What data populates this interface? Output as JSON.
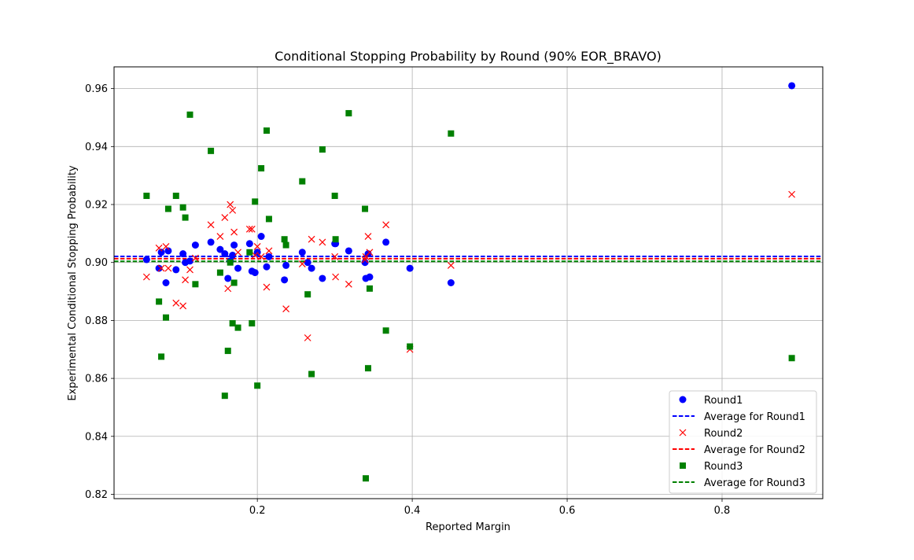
{
  "chart_data": {
    "type": "scatter",
    "title": "Conditional Stopping Probability by Round (90% EOR_BRAVO)",
    "xlabel": "Reported Margin",
    "ylabel": "Experimental Conditional Stopping Probability",
    "xlim": [
      0.015,
      0.93
    ],
    "ylim": [
      0.8185,
      0.9675
    ],
    "xticks": [
      0.2,
      0.4,
      0.6,
      0.8
    ],
    "yticks": [
      0.82,
      0.84,
      0.86,
      0.88,
      0.9,
      0.92,
      0.94,
      0.96
    ],
    "xtick_labels": [
      "0.2",
      "0.4",
      "0.6",
      "0.8"
    ],
    "ytick_labels": [
      "0.82",
      "0.84",
      "0.86",
      "0.88",
      "0.90",
      "0.92",
      "0.94",
      "0.96"
    ],
    "grid": true,
    "legend_position": "bottom-right",
    "series": [
      {
        "name": "Round1",
        "marker": "circle",
        "color": "#0000ff",
        "average_label": "Average for Round1",
        "average": 0.9021,
        "points": [
          [
            0.057,
            0.901
          ],
          [
            0.073,
            0.898
          ],
          [
            0.076,
            0.9035
          ],
          [
            0.082,
            0.893
          ],
          [
            0.085,
            0.904
          ],
          [
            0.095,
            0.8975
          ],
          [
            0.104,
            0.903
          ],
          [
            0.107,
            0.9
          ],
          [
            0.113,
            0.9005
          ],
          [
            0.12,
            0.906
          ],
          [
            0.14,
            0.907
          ],
          [
            0.152,
            0.9045
          ],
          [
            0.158,
            0.903
          ],
          [
            0.162,
            0.8945
          ],
          [
            0.165,
            0.9005
          ],
          [
            0.168,
            0.9025
          ],
          [
            0.17,
            0.906
          ],
          [
            0.175,
            0.898
          ],
          [
            0.19,
            0.9065
          ],
          [
            0.193,
            0.897
          ],
          [
            0.197,
            0.8965
          ],
          [
            0.2,
            0.9035
          ],
          [
            0.205,
            0.909
          ],
          [
            0.212,
            0.8985
          ],
          [
            0.215,
            0.902
          ],
          [
            0.235,
            0.894
          ],
          [
            0.237,
            0.899
          ],
          [
            0.258,
            0.9035
          ],
          [
            0.265,
            0.9
          ],
          [
            0.27,
            0.898
          ],
          [
            0.284,
            0.8945
          ],
          [
            0.3,
            0.9065
          ],
          [
            0.301,
            0.9065
          ],
          [
            0.318,
            0.904
          ],
          [
            0.339,
            0.9
          ],
          [
            0.34,
            0.8945
          ],
          [
            0.343,
            0.903
          ],
          [
            0.345,
            0.895
          ],
          [
            0.366,
            0.907
          ],
          [
            0.397,
            0.898
          ],
          [
            0.45,
            0.893
          ],
          [
            0.89,
            0.961
          ]
        ]
      },
      {
        "name": "Round2",
        "marker": "x",
        "color": "#ff0000",
        "average_label": "Average for Round2",
        "average": 0.9013,
        "points": [
          [
            0.057,
            0.895
          ],
          [
            0.073,
            0.905
          ],
          [
            0.076,
            0.898
          ],
          [
            0.082,
            0.9055
          ],
          [
            0.085,
            0.898
          ],
          [
            0.095,
            0.886
          ],
          [
            0.104,
            0.885
          ],
          [
            0.107,
            0.894
          ],
          [
            0.113,
            0.8975
          ],
          [
            0.12,
            0.9015
          ],
          [
            0.14,
            0.913
          ],
          [
            0.152,
            0.909
          ],
          [
            0.158,
            0.9155
          ],
          [
            0.162,
            0.891
          ],
          [
            0.165,
            0.92
          ],
          [
            0.168,
            0.918
          ],
          [
            0.17,
            0.9105
          ],
          [
            0.175,
            0.9035
          ],
          [
            0.19,
            0.9115
          ],
          [
            0.193,
            0.9115
          ],
          [
            0.197,
            0.9025
          ],
          [
            0.2,
            0.9055
          ],
          [
            0.205,
            0.902
          ],
          [
            0.212,
            0.8915
          ],
          [
            0.215,
            0.904
          ],
          [
            0.237,
            0.884
          ],
          [
            0.258,
            0.8995
          ],
          [
            0.265,
            0.874
          ],
          [
            0.27,
            0.908
          ],
          [
            0.284,
            0.907
          ],
          [
            0.3,
            0.902
          ],
          [
            0.301,
            0.895
          ],
          [
            0.318,
            0.8925
          ],
          [
            0.339,
            0.901
          ],
          [
            0.34,
            0.902
          ],
          [
            0.343,
            0.909
          ],
          [
            0.345,
            0.9035
          ],
          [
            0.366,
            0.913
          ],
          [
            0.397,
            0.87
          ],
          [
            0.45,
            0.899
          ],
          [
            0.89,
            0.9235
          ]
        ]
      },
      {
        "name": "Round3",
        "marker": "square",
        "color": "#008000",
        "average_label": "Average for Round3",
        "average": 0.9004,
        "points": [
          [
            0.057,
            0.923
          ],
          [
            0.073,
            0.8865
          ],
          [
            0.076,
            0.8675
          ],
          [
            0.082,
            0.881
          ],
          [
            0.085,
            0.9185
          ],
          [
            0.095,
            0.923
          ],
          [
            0.104,
            0.919
          ],
          [
            0.107,
            0.9155
          ],
          [
            0.113,
            0.951
          ],
          [
            0.12,
            0.8925
          ],
          [
            0.14,
            0.9385
          ],
          [
            0.152,
            0.8965
          ],
          [
            0.158,
            0.854
          ],
          [
            0.162,
            0.8695
          ],
          [
            0.165,
            0.9
          ],
          [
            0.168,
            0.879
          ],
          [
            0.17,
            0.893
          ],
          [
            0.175,
            0.8775
          ],
          [
            0.19,
            0.9035
          ],
          [
            0.193,
            0.879
          ],
          [
            0.197,
            0.921
          ],
          [
            0.2,
            0.8575
          ],
          [
            0.205,
            0.9325
          ],
          [
            0.212,
            0.9455
          ],
          [
            0.215,
            0.915
          ],
          [
            0.235,
            0.908
          ],
          [
            0.237,
            0.906
          ],
          [
            0.258,
            0.928
          ],
          [
            0.265,
            0.889
          ],
          [
            0.27,
            0.8615
          ],
          [
            0.284,
            0.939
          ],
          [
            0.3,
            0.923
          ],
          [
            0.301,
            0.908
          ],
          [
            0.318,
            0.9515
          ],
          [
            0.339,
            0.9185
          ],
          [
            0.343,
            0.8635
          ],
          [
            0.345,
            0.891
          ],
          [
            0.366,
            0.8765
          ],
          [
            0.34,
            0.8255
          ],
          [
            0.397,
            0.871
          ],
          [
            0.45,
            0.9445
          ],
          [
            0.89,
            0.867
          ]
        ]
      }
    ]
  }
}
